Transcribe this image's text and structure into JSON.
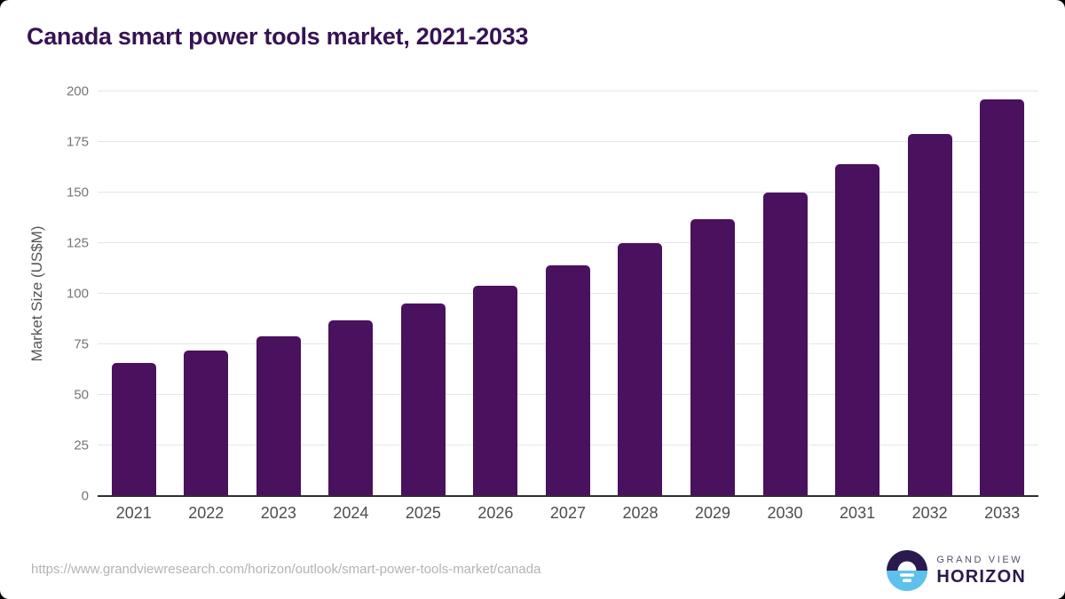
{
  "title": "Canada smart power tools market, 2021-2033",
  "chart_data": {
    "type": "bar",
    "title": "Canada smart power tools market, 2021-2033",
    "categories": [
      "2021",
      "2022",
      "2023",
      "2024",
      "2025",
      "2026",
      "2027",
      "2028",
      "2029",
      "2030",
      "2031",
      "2032",
      "2033"
    ],
    "values": [
      66,
      72,
      79,
      87,
      95,
      104,
      114,
      125,
      137,
      150,
      164,
      179,
      196
    ],
    "xlabel": "",
    "ylabel": "Market Size (US$M)",
    "ylim": [
      0,
      200
    ],
    "ytick_step": 25,
    "grid": true,
    "legend": "none",
    "bar_color": "#4a115e"
  },
  "footer": {
    "source_url": "https://www.grandviewresearch.com/horizon/outlook/smart-power-tools-market/canada",
    "logo": {
      "line1": "GRAND VIEW",
      "line2": "HORIZON"
    }
  },
  "colors": {
    "bar": "#4a115e",
    "title_text": "#361353",
    "gridline": "#e6e6e6",
    "axis_line": "#2e2e2e",
    "tick_text": "#757575",
    "year_text": "#4d4d4d",
    "url_text": "#b3b3b3",
    "logo_dark": "#2b1a4d",
    "logo_blue": "#5ec1ec"
  }
}
